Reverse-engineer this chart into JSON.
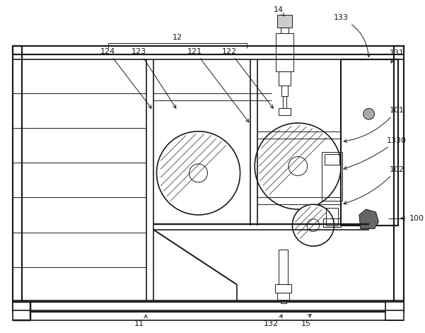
{
  "bg_color": "#ffffff",
  "lc": "#1a1a1a",
  "lw": 1.2,
  "tlw": 0.7,
  "fig_w": 6.01,
  "fig_h": 4.71
}
